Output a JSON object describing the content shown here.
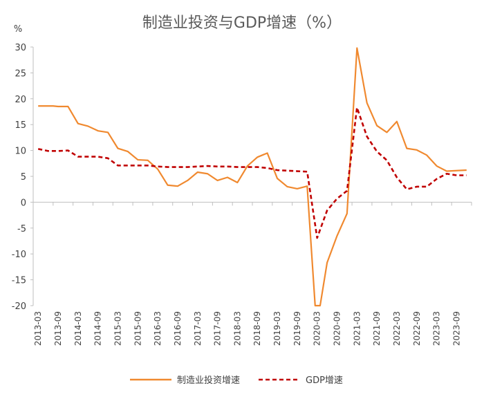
{
  "chart_data": {
    "type": "line",
    "title": "制造业投资与GDP增速（%）",
    "ylabel": "%",
    "xlabel": "",
    "ylim": [
      -20,
      30
    ],
    "yticks": [
      -20,
      -15,
      -10,
      -5,
      0,
      5,
      10,
      15,
      20,
      25,
      30
    ],
    "xtick_labels": [
      "2013-03",
      "2013-09",
      "2014-03",
      "2014-09",
      "2015-03",
      "2015-09",
      "2016-03",
      "2016-09",
      "2017-03",
      "2017-09",
      "2018-03",
      "2018-09",
      "2019-03",
      "2019-09",
      "2020-03",
      "2020-09",
      "2021-03",
      "2021-09",
      "2022-03",
      "2022-09",
      "2023-03",
      "2023-09"
    ],
    "legend_position": "bottom-center",
    "grid": false,
    "colors": {
      "manufacturing": "#F0892F",
      "gdp": "#C00000",
      "axis": "#BFBFBF",
      "text": "#404040"
    },
    "series": [
      {
        "name": "制造业投资增速",
        "style": "solid",
        "points": [
          [
            0,
            18.6
          ],
          [
            1.5,
            18.6
          ],
          [
            2,
            18.5
          ],
          [
            3,
            18.5
          ],
          [
            4,
            15.2
          ],
          [
            5,
            14.7
          ],
          [
            6,
            13.8
          ],
          [
            7,
            13.5
          ],
          [
            8,
            10.4
          ],
          [
            9,
            9.8
          ],
          [
            10,
            8.2
          ],
          [
            11,
            8.1
          ],
          [
            12,
            6.4
          ],
          [
            13,
            3.3
          ],
          [
            14,
            3.1
          ],
          [
            15,
            4.2
          ],
          [
            16,
            5.8
          ],
          [
            17,
            5.5
          ],
          [
            18,
            4.2
          ],
          [
            19,
            4.8
          ],
          [
            20,
            3.8
          ],
          [
            21,
            7.0
          ],
          [
            22,
            8.7
          ],
          [
            23,
            9.5
          ],
          [
            24,
            4.6
          ],
          [
            25,
            3.0
          ],
          [
            26,
            2.6
          ],
          [
            27,
            3.1
          ],
          [
            27.8,
            -20
          ],
          [
            28.3,
            -20
          ],
          [
            29,
            -11.7
          ],
          [
            30,
            -6.5
          ],
          [
            31,
            -2.2
          ],
          [
            32,
            29.8
          ],
          [
            33,
            19.2
          ],
          [
            34,
            14.8
          ],
          [
            35,
            13.5
          ],
          [
            36,
            15.6
          ],
          [
            37,
            10.4
          ],
          [
            38,
            10.1
          ],
          [
            39,
            9.1
          ],
          [
            40,
            7.0
          ],
          [
            41,
            6.0
          ],
          [
            42,
            6.1
          ],
          [
            43,
            6.2
          ]
        ]
      },
      {
        "name": "GDP增速",
        "style": "dashed",
        "points": [
          [
            0,
            10.3
          ],
          [
            1,
            9.9
          ],
          [
            2,
            9.9
          ],
          [
            3,
            10.0
          ],
          [
            4,
            8.8
          ],
          [
            5,
            8.8
          ],
          [
            6,
            8.8
          ],
          [
            7,
            8.5
          ],
          [
            8,
            7.1
          ],
          [
            9,
            7.1
          ],
          [
            10,
            7.1
          ],
          [
            11,
            7.1
          ],
          [
            12,
            6.9
          ],
          [
            13,
            6.8
          ],
          [
            14,
            6.8
          ],
          [
            15,
            6.8
          ],
          [
            16,
            6.9
          ],
          [
            17,
            7.0
          ],
          [
            18,
            6.9
          ],
          [
            19,
            6.9
          ],
          [
            20,
            6.8
          ],
          [
            21,
            6.8
          ],
          [
            22,
            6.8
          ],
          [
            23,
            6.6
          ],
          [
            24,
            6.2
          ],
          [
            25,
            6.1
          ],
          [
            26,
            6.0
          ],
          [
            27,
            5.9
          ],
          [
            28,
            -6.9
          ],
          [
            29,
            -1.6
          ],
          [
            30,
            0.7
          ],
          [
            31,
            2.2
          ],
          [
            32,
            18.3
          ],
          [
            33,
            12.7
          ],
          [
            34,
            9.8
          ],
          [
            35,
            8.1
          ],
          [
            36,
            4.8
          ],
          [
            37,
            2.5
          ],
          [
            38,
            3.0
          ],
          [
            39,
            3.0
          ],
          [
            40,
            4.5
          ],
          [
            41,
            5.5
          ],
          [
            42,
            5.2
          ],
          [
            43,
            5.2
          ]
        ]
      }
    ]
  }
}
